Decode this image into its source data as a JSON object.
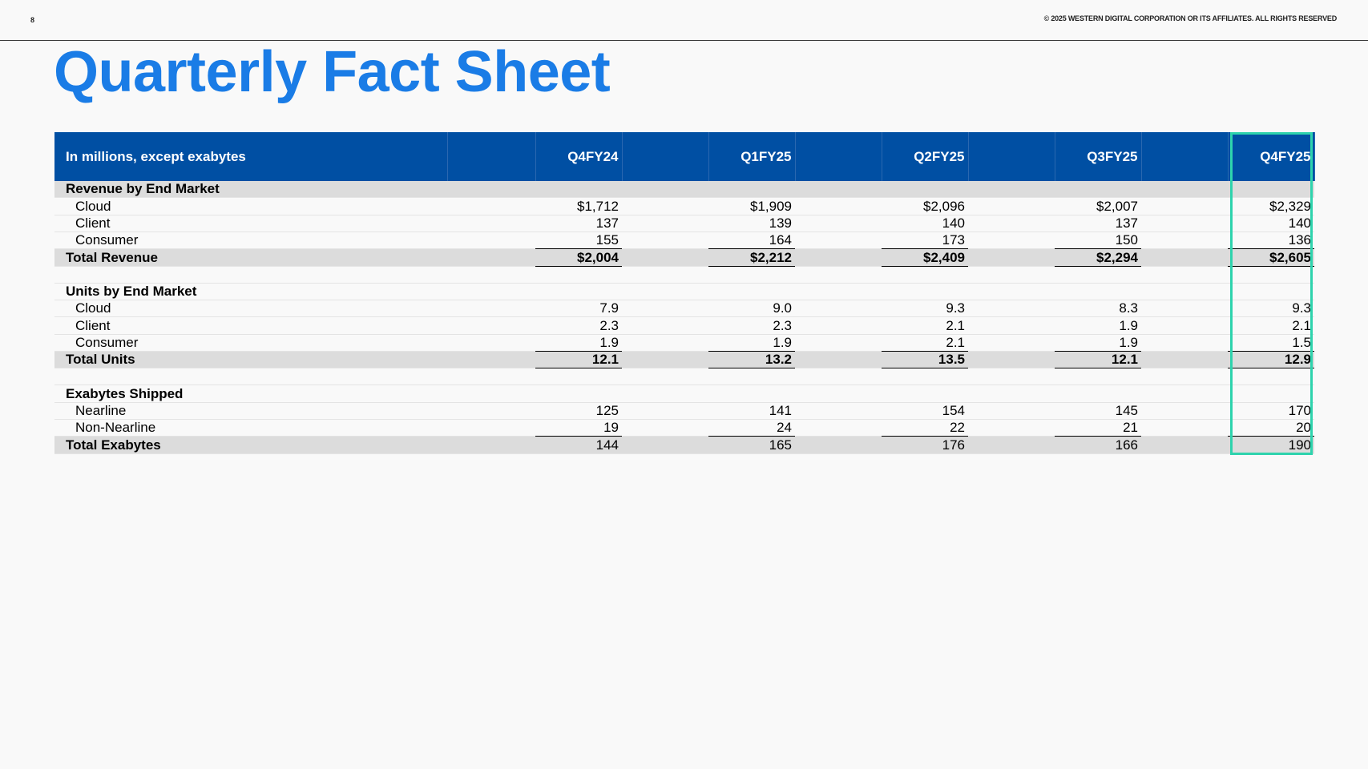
{
  "header": {
    "page_number": "8",
    "copyright": "© 2025 WESTERN DIGITAL CORPORATION OR ITS AFFILIATES. ALL RIGHTS RESERVED"
  },
  "title": "Quarterly Fact Sheet",
  "colors": {
    "title": "#1a7ce6",
    "header_bg": "#004fa3",
    "highlight": "#2ed3ad",
    "section_shade": "#dcdcdc"
  },
  "table": {
    "corner_label": "In millions, except exabytes",
    "quarters": [
      "Q4FY24",
      "Q1FY25",
      "Q2FY25",
      "Q3FY25",
      "Q4FY25"
    ],
    "highlighted_quarter": "Q4FY25",
    "revenue": {
      "section_label": "Revenue by End Market",
      "rows": [
        {
          "label": "Cloud",
          "values": [
            "$1,712",
            "$1,909",
            "$2,096",
            "$2,007",
            "$2,329"
          ]
        },
        {
          "label": "Client",
          "values": [
            "137",
            "139",
            "140",
            "137",
            "140"
          ]
        },
        {
          "label": "Consumer",
          "values": [
            "155",
            "164",
            "173",
            "150",
            "136"
          ]
        }
      ],
      "total": {
        "label": "Total Revenue",
        "values": [
          "$2,004",
          "$2,212",
          "$2,409",
          "$2,294",
          "$2,605"
        ]
      }
    },
    "units": {
      "section_label": "Units by End Market",
      "rows": [
        {
          "label": "Cloud",
          "values": [
            "7.9",
            "9.0",
            "9.3",
            "8.3",
            "9.3"
          ]
        },
        {
          "label": "Client",
          "values": [
            "2.3",
            "2.3",
            "2.1",
            "1.9",
            "2.1"
          ]
        },
        {
          "label": "Consumer",
          "values": [
            "1.9",
            "1.9",
            "2.1",
            "1.9",
            "1.5"
          ]
        }
      ],
      "total": {
        "label": "Total Units",
        "values": [
          "12.1",
          "13.2",
          "13.5",
          "12.1",
          "12.9"
        ]
      }
    },
    "exabytes": {
      "section_label": "Exabytes Shipped",
      "rows": [
        {
          "label": "Nearline",
          "values": [
            "125",
            "141",
            "154",
            "145",
            "170"
          ]
        },
        {
          "label": "Non-Nearline",
          "values": [
            "19",
            "24",
            "22",
            "21",
            "20"
          ]
        }
      ],
      "total": {
        "label": "Total Exabytes",
        "values": [
          "144",
          "165",
          "176",
          "166",
          "190"
        ]
      }
    }
  }
}
